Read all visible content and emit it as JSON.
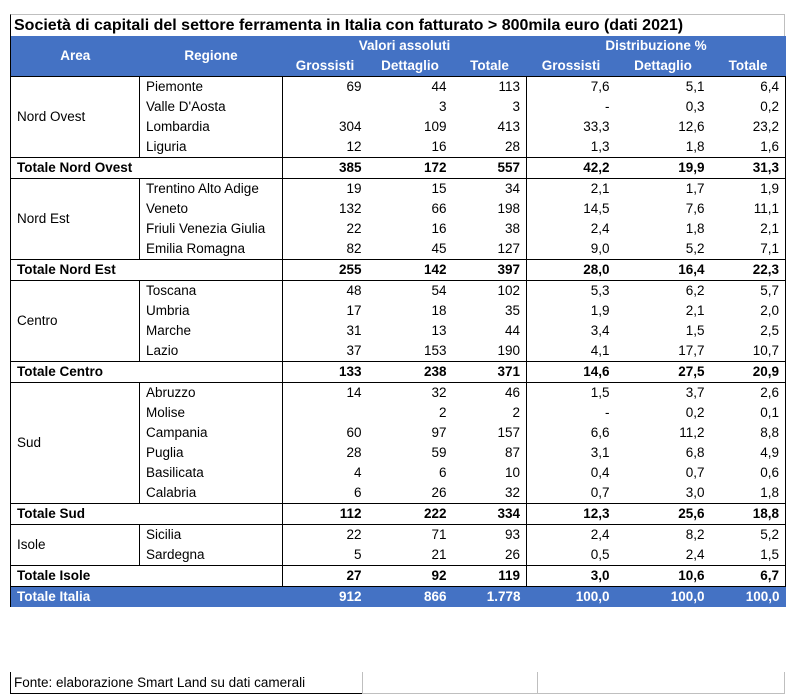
{
  "title": "Società di capitali del settore ferramenta in Italia con fatturato > 800mila euro (dati 2021)",
  "headers": {
    "area": "Area",
    "regione": "Regione",
    "valori_assoluti": "Valori assoluti",
    "distribuzione": "Distribuzione %",
    "grossisti": "Grossisti",
    "dettaglio": "Dettaglio",
    "totale": "Totale"
  },
  "groups": [
    {
      "area": "Nord Ovest",
      "rows": [
        {
          "regione": "Piemonte",
          "g": "69",
          "d": "44",
          "t": "113",
          "pg": "7,6",
          "pd": "5,1",
          "pt": "6,4"
        },
        {
          "regione": "Valle D'Aosta",
          "g": "",
          "d": "3",
          "t": "3",
          "pg": "-",
          "pd": "0,3",
          "pt": "0,2"
        },
        {
          "regione": "Lombardia",
          "g": "304",
          "d": "109",
          "t": "413",
          "pg": "33,3",
          "pd": "12,6",
          "pt": "23,2"
        },
        {
          "regione": "Liguria",
          "g": "12",
          "d": "16",
          "t": "28",
          "pg": "1,3",
          "pd": "1,8",
          "pt": "1,6"
        }
      ],
      "total": {
        "label": "Totale Nord Ovest",
        "g": "385",
        "d": "172",
        "t": "557",
        "pg": "42,2",
        "pd": "19,9",
        "pt": "31,3"
      }
    },
    {
      "area": "Nord Est",
      "rows": [
        {
          "regione": "Trentino Alto Adige",
          "g": "19",
          "d": "15",
          "t": "34",
          "pg": "2,1",
          "pd": "1,7",
          "pt": "1,9"
        },
        {
          "regione": "Veneto",
          "g": "132",
          "d": "66",
          "t": "198",
          "pg": "14,5",
          "pd": "7,6",
          "pt": "11,1"
        },
        {
          "regione": "Friuli Venezia Giulia",
          "g": "22",
          "d": "16",
          "t": "38",
          "pg": "2,4",
          "pd": "1,8",
          "pt": "2,1"
        },
        {
          "regione": "Emilia Romagna",
          "g": "82",
          "d": "45",
          "t": "127",
          "pg": "9,0",
          "pd": "5,2",
          "pt": "7,1"
        }
      ],
      "total": {
        "label": "Totale Nord Est",
        "g": "255",
        "d": "142",
        "t": "397",
        "pg": "28,0",
        "pd": "16,4",
        "pt": "22,3"
      }
    },
    {
      "area": "Centro",
      "rows": [
        {
          "regione": "Toscana",
          "g": "48",
          "d": "54",
          "t": "102",
          "pg": "5,3",
          "pd": "6,2",
          "pt": "5,7"
        },
        {
          "regione": "Umbria",
          "g": "17",
          "d": "18",
          "t": "35",
          "pg": "1,9",
          "pd": "2,1",
          "pt": "2,0"
        },
        {
          "regione": "Marche",
          "g": "31",
          "d": "13",
          "t": "44",
          "pg": "3,4",
          "pd": "1,5",
          "pt": "2,5"
        },
        {
          "regione": "Lazio",
          "g": "37",
          "d": "153",
          "t": "190",
          "pg": "4,1",
          "pd": "17,7",
          "pt": "10,7"
        }
      ],
      "total": {
        "label": "Totale Centro",
        "g": "133",
        "d": "238",
        "t": "371",
        "pg": "14,6",
        "pd": "27,5",
        "pt": "20,9"
      }
    },
    {
      "area": "Sud",
      "rows": [
        {
          "regione": "Abruzzo",
          "g": "14",
          "d": "32",
          "t": "46",
          "pg": "1,5",
          "pd": "3,7",
          "pt": "2,6"
        },
        {
          "regione": "Molise",
          "g": "",
          "d": "2",
          "t": "2",
          "pg": "-",
          "pd": "0,2",
          "pt": "0,1"
        },
        {
          "regione": "Campania",
          "g": "60",
          "d": "97",
          "t": "157",
          "pg": "6,6",
          "pd": "11,2",
          "pt": "8,8"
        },
        {
          "regione": "Puglia",
          "g": "28",
          "d": "59",
          "t": "87",
          "pg": "3,1",
          "pd": "6,8",
          "pt": "4,9"
        },
        {
          "regione": "Basilicata",
          "g": "4",
          "d": "6",
          "t": "10",
          "pg": "0,4",
          "pd": "0,7",
          "pt": "0,6"
        },
        {
          "regione": "Calabria",
          "g": "6",
          "d": "26",
          "t": "32",
          "pg": "0,7",
          "pd": "3,0",
          "pt": "1,8"
        }
      ],
      "total": {
        "label": "Totale Sud",
        "g": "112",
        "d": "222",
        "t": "334",
        "pg": "12,3",
        "pd": "25,6",
        "pt": "18,8"
      }
    },
    {
      "area": "Isole",
      "rows": [
        {
          "regione": "Sicilia",
          "g": "22",
          "d": "71",
          "t": "93",
          "pg": "2,4",
          "pd": "8,2",
          "pt": "5,2"
        },
        {
          "regione": "Sardegna",
          "g": "5",
          "d": "21",
          "t": "26",
          "pg": "0,5",
          "pd": "2,4",
          "pt": "1,5"
        }
      ],
      "total": {
        "label": "Totale Isole",
        "g": "27",
        "d": "92",
        "t": "119",
        "pg": "3,0",
        "pd": "10,6",
        "pt": "6,7"
      }
    }
  ],
  "italia": {
    "label": "Totale Italia",
    "g": "912",
    "d": "866",
    "t": "1.778",
    "pg": "100,0",
    "pd": "100,0",
    "pt": "100,0"
  },
  "footer": "Fonte: elaborazione Smart Land su dati camerali",
  "colors": {
    "header_bg": "#4472c4",
    "header_text": "#ffffff"
  }
}
